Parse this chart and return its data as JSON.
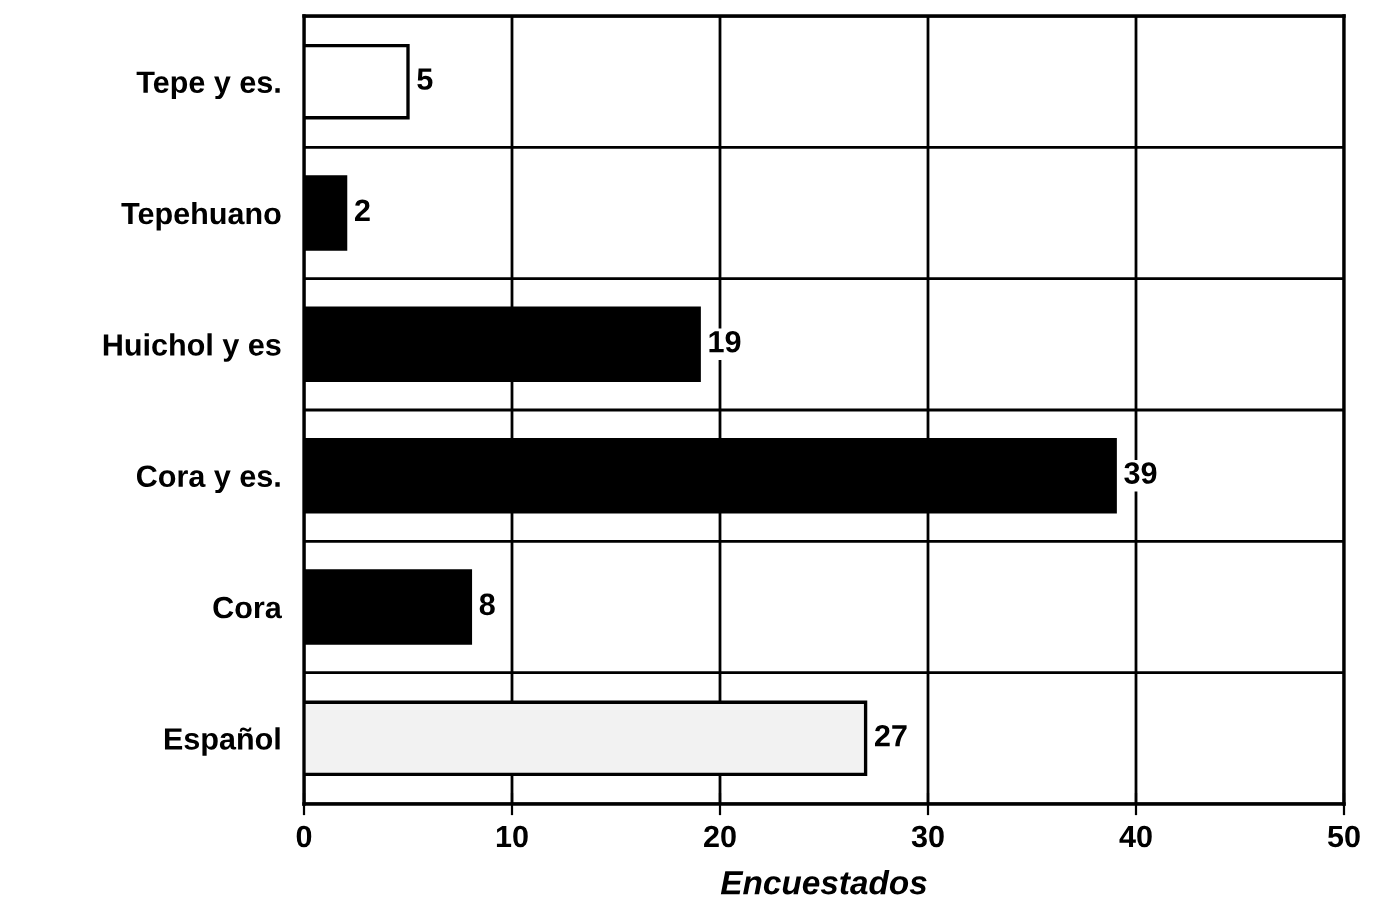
{
  "chart_data": {
    "type": "bar",
    "orientation": "horizontal",
    "xlabel": "Encuestados",
    "categories": [
      "Tepe y es.",
      "Tepehuano",
      "Huichol y es",
      "Cora y es.",
      "Cora",
      "Español"
    ],
    "values": [
      5,
      2,
      19,
      39,
      8,
      27
    ],
    "colors": [
      "#ffffff",
      "#000000",
      "#000000",
      "#000000",
      "#000000",
      "#f2f2f2"
    ],
    "xlim": [
      0,
      50
    ],
    "xticks": [
      0,
      10,
      20,
      30,
      40,
      50
    ],
    "grid": true,
    "data_labels": true
  }
}
